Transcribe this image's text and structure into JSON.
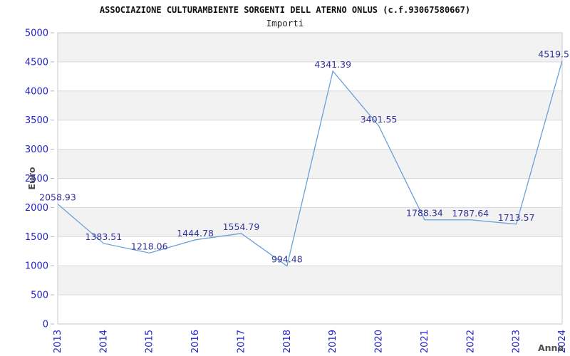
{
  "header": {
    "title": "ASSOCIAZIONE CULTURAMBIENTE SORGENTI DELL ATERNO ONLUS (c.f.93067580667)",
    "subtitle": "Importi"
  },
  "chart_data": {
    "type": "line",
    "title": "ASSOCIAZIONE CULTURAMBIENTE SORGENTI DELL ATERNO ONLUS (c.f.93067580667)",
    "subtitle": "Importi",
    "xlabel": "Anno",
    "ylabel": "Euro",
    "categories": [
      "2013",
      "2014",
      "2015",
      "2016",
      "2017",
      "2018",
      "2019",
      "2020",
      "2021",
      "2022",
      "2023",
      "2024"
    ],
    "values": [
      2058.93,
      1383.51,
      1218.06,
      1444.78,
      1554.79,
      994.48,
      4341.39,
      3401.55,
      1788.34,
      1787.64,
      1713.57,
      4519.5
    ],
    "point_labels": [
      "2058.93",
      "1383.51",
      "1218.06",
      "1444.78",
      "1554.79",
      "994.48",
      "4341.39",
      "3401.55",
      "1788.34",
      "1787.64",
      "1713.57",
      "4519.5"
    ],
    "ylim": [
      0,
      5000
    ],
    "ytick_step": 500,
    "grid": true,
    "legend": "none",
    "band_alternate": true,
    "colors": {
      "line": "#6b9fd9",
      "band": "#f2f2f2",
      "grid": "#d9d9d9",
      "border": "#c8c8c8",
      "tick": "#b0b0dd",
      "tick_label": "#2222cc",
      "point_label": "#333399",
      "axis_title": "#4d4d4d",
      "title": "#111111"
    }
  }
}
